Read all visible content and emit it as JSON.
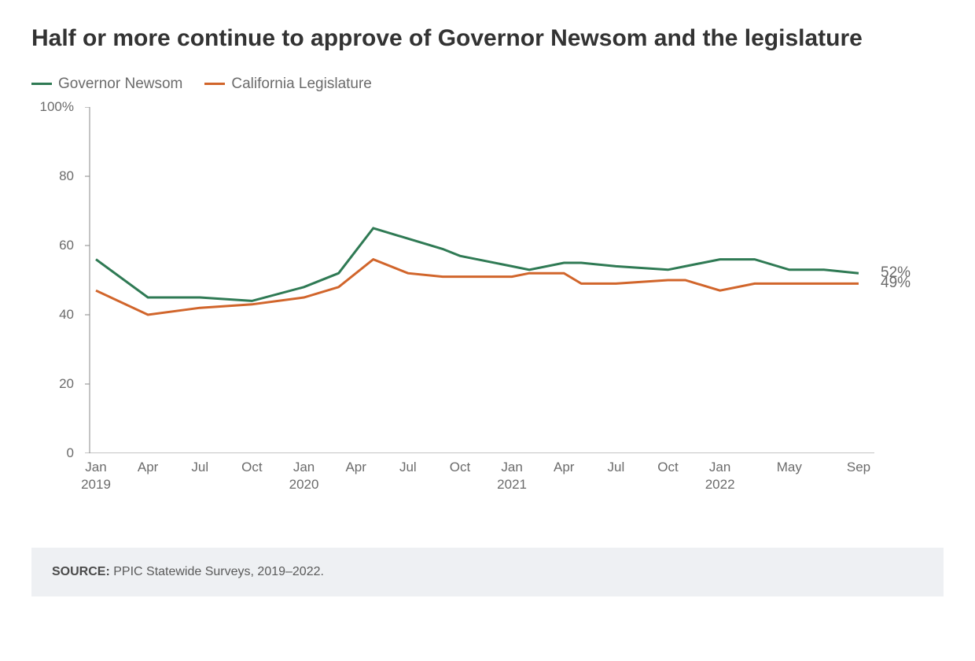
{
  "title": "Half or more continue to approve of Governor Newsom and the legislature",
  "legend": {
    "series1": {
      "label": "Governor Newsom",
      "color": "#2f7a54"
    },
    "series2": {
      "label": "California Legislature",
      "color": "#d1652b"
    }
  },
  "chart": {
    "type": "line",
    "background_color": "#ffffff",
    "axis_color": "#8a8a8a",
    "tick_color": "#6b6b6b",
    "tick_fontsize": 17,
    "title_fontsize": 30,
    "legend_fontsize": 19,
    "line_width": 3,
    "ylim": [
      0,
      100
    ],
    "yticks": [
      0,
      20,
      40,
      60,
      80,
      100
    ],
    "ytick_labels": [
      "0",
      "20",
      "40",
      "60",
      "80",
      "100%"
    ],
    "xticks": [
      {
        "pos": 0,
        "month": "Jan",
        "year": "2019"
      },
      {
        "pos": 3,
        "month": "Apr",
        "year": ""
      },
      {
        "pos": 6,
        "month": "Jul",
        "year": ""
      },
      {
        "pos": 9,
        "month": "Oct",
        "year": ""
      },
      {
        "pos": 12,
        "month": "Jan",
        "year": "2020"
      },
      {
        "pos": 15,
        "month": "Apr",
        "year": ""
      },
      {
        "pos": 18,
        "month": "Jul",
        "year": ""
      },
      {
        "pos": 21,
        "month": "Oct",
        "year": ""
      },
      {
        "pos": 24,
        "month": "Jan",
        "year": "2021"
      },
      {
        "pos": 27,
        "month": "Apr",
        "year": ""
      },
      {
        "pos": 30,
        "month": "Jul",
        "year": ""
      },
      {
        "pos": 33,
        "month": "Oct",
        "year": ""
      },
      {
        "pos": 36,
        "month": "Jan",
        "year": "2022"
      },
      {
        "pos": 40,
        "month": "May",
        "year": ""
      },
      {
        "pos": 44,
        "month": "Sep",
        "year": ""
      }
    ],
    "x_range": 44,
    "series": [
      {
        "name": "Governor Newsom",
        "color": "#2f7a54",
        "end_label": "52%",
        "data": [
          [
            0,
            56
          ],
          [
            3,
            45
          ],
          [
            6,
            45
          ],
          [
            9,
            44
          ],
          [
            12,
            48
          ],
          [
            14,
            52
          ],
          [
            16,
            65
          ],
          [
            18,
            62
          ],
          [
            20,
            59
          ],
          [
            21,
            57
          ],
          [
            24,
            54
          ],
          [
            25,
            53
          ],
          [
            27,
            55
          ],
          [
            28,
            55
          ],
          [
            30,
            54
          ],
          [
            33,
            53
          ],
          [
            34,
            54
          ],
          [
            36,
            56
          ],
          [
            38,
            56
          ],
          [
            40,
            53
          ],
          [
            42,
            53
          ],
          [
            44,
            52
          ]
        ]
      },
      {
        "name": "California Legislature",
        "color": "#d1652b",
        "end_label": "49%",
        "data": [
          [
            0,
            47
          ],
          [
            3,
            40
          ],
          [
            6,
            42
          ],
          [
            9,
            43
          ],
          [
            12,
            45
          ],
          [
            14,
            48
          ],
          [
            16,
            56
          ],
          [
            18,
            52
          ],
          [
            20,
            51
          ],
          [
            21,
            51
          ],
          [
            24,
            51
          ],
          [
            25,
            52
          ],
          [
            27,
            52
          ],
          [
            28,
            49
          ],
          [
            30,
            49
          ],
          [
            33,
            50
          ],
          [
            34,
            50
          ],
          [
            36,
            47
          ],
          [
            38,
            49
          ],
          [
            40,
            49
          ],
          [
            42,
            49
          ],
          [
            44,
            49
          ]
        ]
      }
    ]
  },
  "source": {
    "label": "SOURCE:",
    "text": " PPIC Statewide Surveys, 2019–2022."
  }
}
